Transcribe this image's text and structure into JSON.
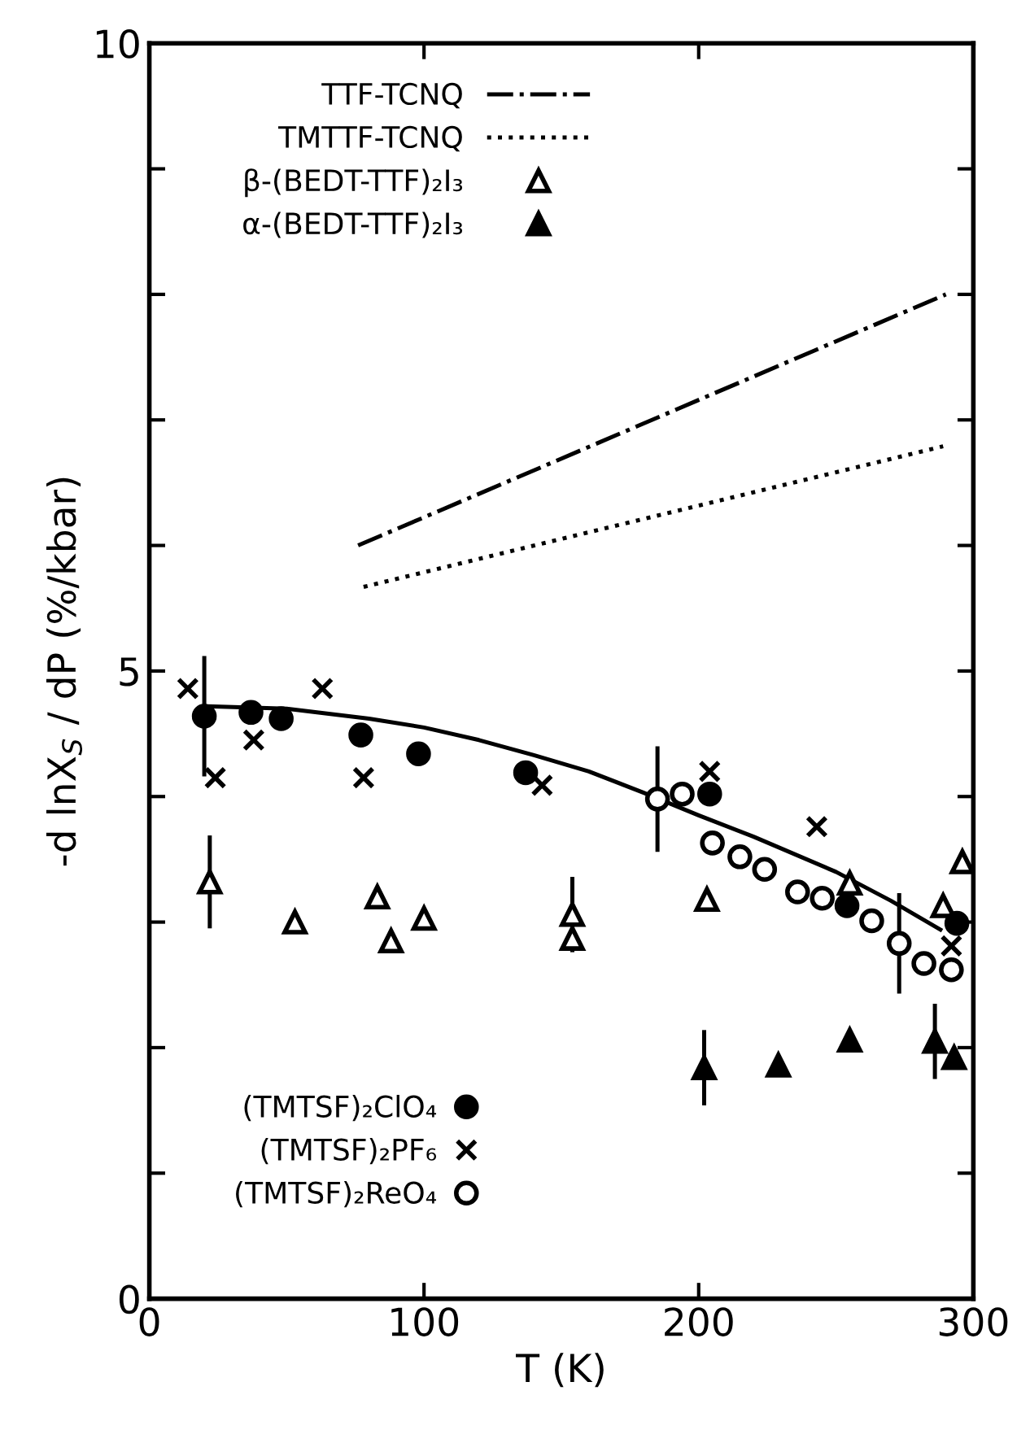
{
  "chart_data": {
    "type": "scatter",
    "xlabel": "T (K)",
    "ylabel": "-d lnX$_{S}$ / dP (%/kbar)",
    "xlim": [
      0,
      300
    ],
    "xticks": [
      0,
      100,
      200,
      300
    ],
    "ylim": [
      0,
      10
    ],
    "yticks": [
      0,
      {
        "value": 1,
        "label": null
      },
      {
        "value": 2,
        "label": null
      },
      {
        "value": 3,
        "label": null
      },
      {
        "value": 4,
        "label": null
      },
      5,
      {
        "value": 6,
        "label": null
      },
      {
        "value": 7,
        "label": null
      },
      {
        "value": 8,
        "label": null
      },
      {
        "value": 9,
        "label": null
      },
      10
    ],
    "grid": false,
    "legend": "top left",
    "series": [
      {
        "name": "TTF-TCNQ",
        "type": "line",
        "line_style": "dashdot",
        "marker": "none",
        "color": "#000000",
        "x": [
          76,
          290
        ],
        "values": [
          6.0,
          8.0
        ]
      },
      {
        "name": "TMTTF-TCNQ",
        "type": "line",
        "line_style": "dotted",
        "marker": "none",
        "color": "#000000",
        "x": [
          78,
          289
        ],
        "values": [
          5.67,
          6.79
        ]
      },
      {
        "name": "β-(BEDT-TTF)₂I₃",
        "marker": "triangle",
        "color": "#ffffff",
        "x": [
          22,
          53,
          83,
          88,
          100,
          154,
          154,
          203,
          255,
          289,
          296
        ],
        "values": [
          3.32,
          3.0,
          3.2,
          2.85,
          3.03,
          3.06,
          2.87,
          3.18,
          3.31,
          3.13,
          3.48
        ],
        "errors": [
          0.37,
          null,
          null,
          null,
          null,
          0.3,
          null,
          null,
          null,
          null,
          null
        ]
      },
      {
        "name": "α-(BEDT-TTF)₂I₃",
        "marker": "triangle",
        "color": "#000000",
        "x": [
          202,
          229,
          255,
          286,
          293
        ],
        "values": [
          1.84,
          1.86,
          2.06,
          2.05,
          1.92
        ],
        "errors": [
          0.3,
          null,
          null,
          0.3,
          null
        ]
      },
      {
        "name": "(TMTSF)₂ClO₄",
        "marker": "circle",
        "color": "#000000",
        "x": [
          20,
          37,
          48,
          77,
          98,
          137,
          204,
          254,
          294
        ],
        "values": [
          4.64,
          4.67,
          4.62,
          4.49,
          4.34,
          4.19,
          4.02,
          3.13,
          2.99
        ],
        "errors": [
          0.48,
          null,
          null,
          null,
          null,
          null,
          null,
          null,
          null
        ]
      },
      {
        "name": "(TMTSF)₂PF₆",
        "marker": "cross",
        "color": "#000000",
        "x": [
          14,
          24,
          38,
          63,
          78,
          143,
          204,
          243,
          292
        ],
        "values": [
          4.86,
          4.15,
          4.45,
          4.86,
          4.15,
          4.09,
          4.2,
          3.76,
          2.81
        ]
      },
      {
        "name": "(TMTSF)₂ReO₄",
        "marker": "circle",
        "color": "#ffffff",
        "x": [
          185,
          194,
          205,
          215,
          224,
          236,
          245,
          263,
          273,
          282,
          292
        ],
        "values": [
          3.98,
          4.02,
          3.63,
          3.52,
          3.42,
          3.24,
          3.19,
          3.01,
          2.83,
          2.67,
          2.62
        ],
        "errors": [
          0.42,
          null,
          null,
          null,
          null,
          null,
          null,
          null,
          0.4,
          null,
          null
        ]
      },
      {
        "type": "line",
        "line_style": "solid",
        "marker": "none",
        "color": "#000000",
        "x": [
          20,
          50,
          80,
          100,
          120,
          140,
          160,
          180,
          200,
          220,
          250,
          270,
          288
        ],
        "values": [
          4.72,
          4.7,
          4.62,
          4.55,
          4.45,
          4.33,
          4.2,
          4.03,
          3.85,
          3.68,
          3.4,
          3.17,
          2.94
        ]
      }
    ]
  }
}
